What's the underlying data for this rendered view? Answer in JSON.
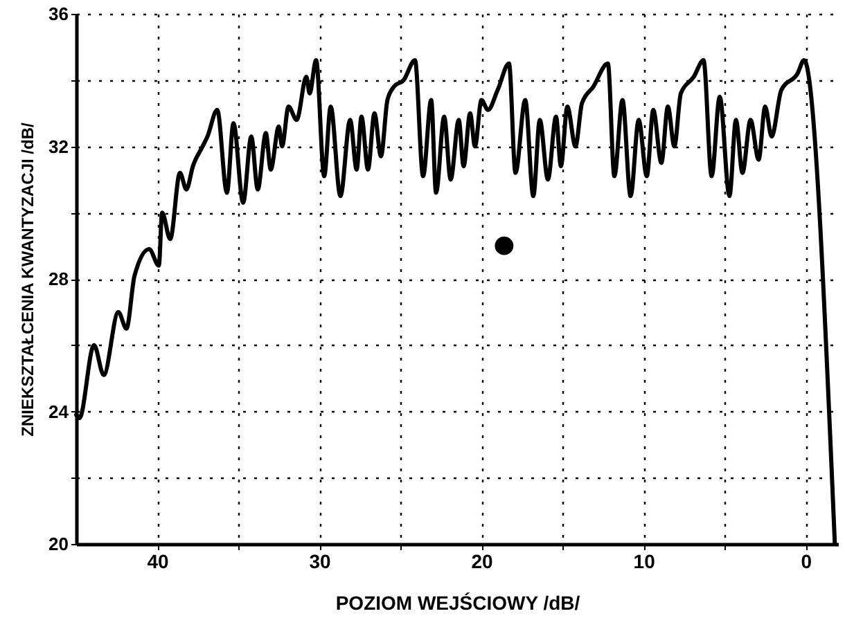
{
  "chart_data": {
    "type": "line",
    "xlabel": "POZIOM WEJŚCIOWY /dB/",
    "ylabel": "ZNIEKSZTAŁCENIA KWANTYZACJI /dB/",
    "xlim": [
      45,
      -2
    ],
    "ylim": [
      20,
      36
    ],
    "xticks": [
      40,
      {
        "value": 35,
        "label": null
      },
      30,
      {
        "value": 25,
        "label": null
      },
      20,
      {
        "value": 15,
        "label": null
      },
      10,
      {
        "value": 5,
        "label": null
      },
      0
    ],
    "yticks": [
      20,
      {
        "value": 22,
        "label": null
      },
      24,
      {
        "value": 26,
        "label": null
      },
      28,
      {
        "value": 30,
        "label": null
      },
      32,
      {
        "value": 34,
        "label": null
      },
      36
    ],
    "grid": true,
    "marker": "none",
    "line_style": "solid",
    "series": [
      {
        "color": "#000000",
        "x": [
          45,
          44.8,
          43.9,
          43.3,
          42.4,
          41.9,
          41.4,
          40.5,
          39.9,
          39.7,
          39.2,
          38.6,
          38.2,
          37.8,
          37.2,
          36.9,
          36.3,
          35.7,
          35.3,
          34.7,
          34.2,
          33.8,
          33.3,
          33.0,
          32.5,
          32.3,
          31.9,
          31.4,
          30.8,
          30.6,
          30.2,
          29.7,
          29.3,
          28.7,
          28.1,
          27.7,
          27.4,
          27.0,
          26.6,
          26.2,
          25.8,
          25.4,
          24.8,
          24.1,
          23.6,
          23.1,
          22.8,
          22.3,
          21.9,
          21.4,
          21.1,
          20.7,
          20.4,
          20.0,
          19.6,
          19.0,
          18.3,
          17.9,
          17.3,
          16.8,
          16.4,
          15.9,
          15.4,
          15.1,
          14.7,
          14.2,
          13.8,
          13.1,
          12.2,
          11.8,
          11.3,
          10.8,
          10.3,
          9.8,
          9.4,
          8.9,
          8.5,
          8.1,
          7.7,
          6.9,
          6.3,
          5.8,
          5.3,
          4.7,
          4.3,
          3.9,
          3.4,
          2.9,
          2.5,
          2.1,
          1.5,
          0.5,
          0.1,
          -1.8
        ],
        "values": [
          23.9,
          23.8,
          26.0,
          25.1,
          27.0,
          26.5,
          28.1,
          28.9,
          28.4,
          30.0,
          29.2,
          31.2,
          30.7,
          31.4,
          32.0,
          32.3,
          33.1,
          30.6,
          32.7,
          30.3,
          32.3,
          30.7,
          32.4,
          31.3,
          32.6,
          32.0,
          33.2,
          32.8,
          34.1,
          33.6,
          34.6,
          31.1,
          33.2,
          30.5,
          32.8,
          31.3,
          32.9,
          31.3,
          33.0,
          31.7,
          33.4,
          33.8,
          34.0,
          34.6,
          31.1,
          33.4,
          30.6,
          32.9,
          31.0,
          32.8,
          31.4,
          33.0,
          32.0,
          33.4,
          33.1,
          33.7,
          34.5,
          31.2,
          33.4,
          30.5,
          32.8,
          31.0,
          32.9,
          31.4,
          33.2,
          32.0,
          33.3,
          33.8,
          34.5,
          31.1,
          33.4,
          30.5,
          32.8,
          31.1,
          33.1,
          31.5,
          33.2,
          32.0,
          33.6,
          34.1,
          34.6,
          31.1,
          33.5,
          30.5,
          32.8,
          31.2,
          32.8,
          31.6,
          33.2,
          32.3,
          33.7,
          34.2,
          34.6,
          20.0
        ]
      },
      {
        "type": "scatter",
        "color": "#000000",
        "marker": "circle",
        "x": [
          18.6
        ],
        "values": [
          29.0
        ]
      }
    ]
  }
}
